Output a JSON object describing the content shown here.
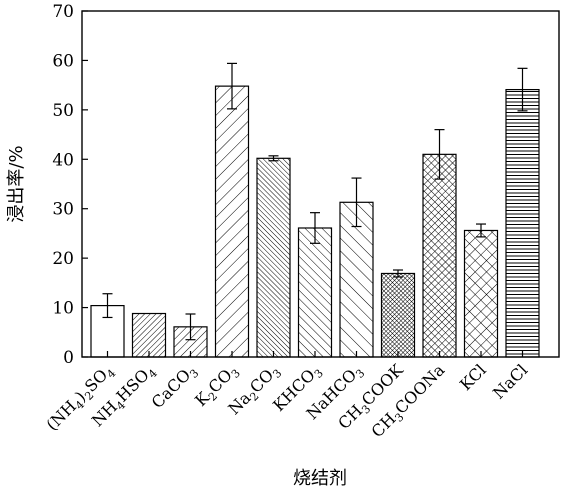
{
  "chart_data": {
    "type": "bar",
    "xlabel": "烧结剂",
    "ylabel": "浸出率/%",
    "ylim": [
      0,
      70
    ],
    "yticks": [
      0,
      10,
      20,
      30,
      40,
      50,
      60,
      70
    ],
    "grid": false,
    "categories": [
      {
        "base": "(NH",
        "parts": [
          {
            "t": "(NH"
          },
          {
            "t": "4",
            "s": 1
          },
          {
            "t": ")"
          },
          {
            "t": "2",
            "s": 1
          },
          {
            "t": "SO"
          },
          {
            "t": "4",
            "s": 1
          }
        ]
      },
      {
        "base": "NH4HSO4",
        "parts": [
          {
            "t": "NH"
          },
          {
            "t": "4",
            "s": 1
          },
          {
            "t": "HSO"
          },
          {
            "t": "4",
            "s": 1
          }
        ]
      },
      {
        "base": "CaCO3",
        "parts": [
          {
            "t": "CaCO"
          },
          {
            "t": "3",
            "s": 1
          }
        ]
      },
      {
        "base": "K2CO3",
        "parts": [
          {
            "t": "K"
          },
          {
            "t": "2",
            "s": 1
          },
          {
            "t": "CO"
          },
          {
            "t": "3",
            "s": 1
          }
        ]
      },
      {
        "base": "Na2CO3",
        "parts": [
          {
            "t": "Na"
          },
          {
            "t": "2",
            "s": 1
          },
          {
            "t": "CO"
          },
          {
            "t": "3",
            "s": 1
          }
        ]
      },
      {
        "base": "KHCO3",
        "parts": [
          {
            "t": "KHCO"
          },
          {
            "t": "3",
            "s": 1
          }
        ]
      },
      {
        "base": "NaHCO3",
        "parts": [
          {
            "t": "NaHCO"
          },
          {
            "t": "3",
            "s": 1
          }
        ]
      },
      {
        "base": "CH3COOK",
        "parts": [
          {
            "t": "CH"
          },
          {
            "t": "3",
            "s": 1
          },
          {
            "t": "COOK"
          }
        ]
      },
      {
        "base": "CH3COONa",
        "parts": [
          {
            "t": "CH"
          },
          {
            "t": "3",
            "s": 1
          },
          {
            "t": "COONa"
          }
        ]
      },
      {
        "base": "KCl",
        "parts": [
          {
            "t": "KCl"
          }
        ]
      },
      {
        "base": "NaCl",
        "parts": [
          {
            "t": "NaCl"
          }
        ]
      }
    ],
    "values": [
      10.4,
      8.8,
      6.1,
      54.8,
      40.2,
      26.1,
      31.3,
      16.9,
      41.0,
      25.6,
      54.1
    ],
    "errors": [
      2.4,
      0,
      2.6,
      4.6,
      0.5,
      3.1,
      4.9,
      0.7,
      5.0,
      1.3,
      4.3
    ],
    "patterns": [
      "none",
      "diag-right-dense",
      "diag-right",
      "diag-right-wide",
      "diag-left-dense",
      "diag-left",
      "diag-left-wide",
      "crosshatch-dense",
      "crosshatch",
      "crosshatch-wide",
      "horizontal"
    ]
  }
}
